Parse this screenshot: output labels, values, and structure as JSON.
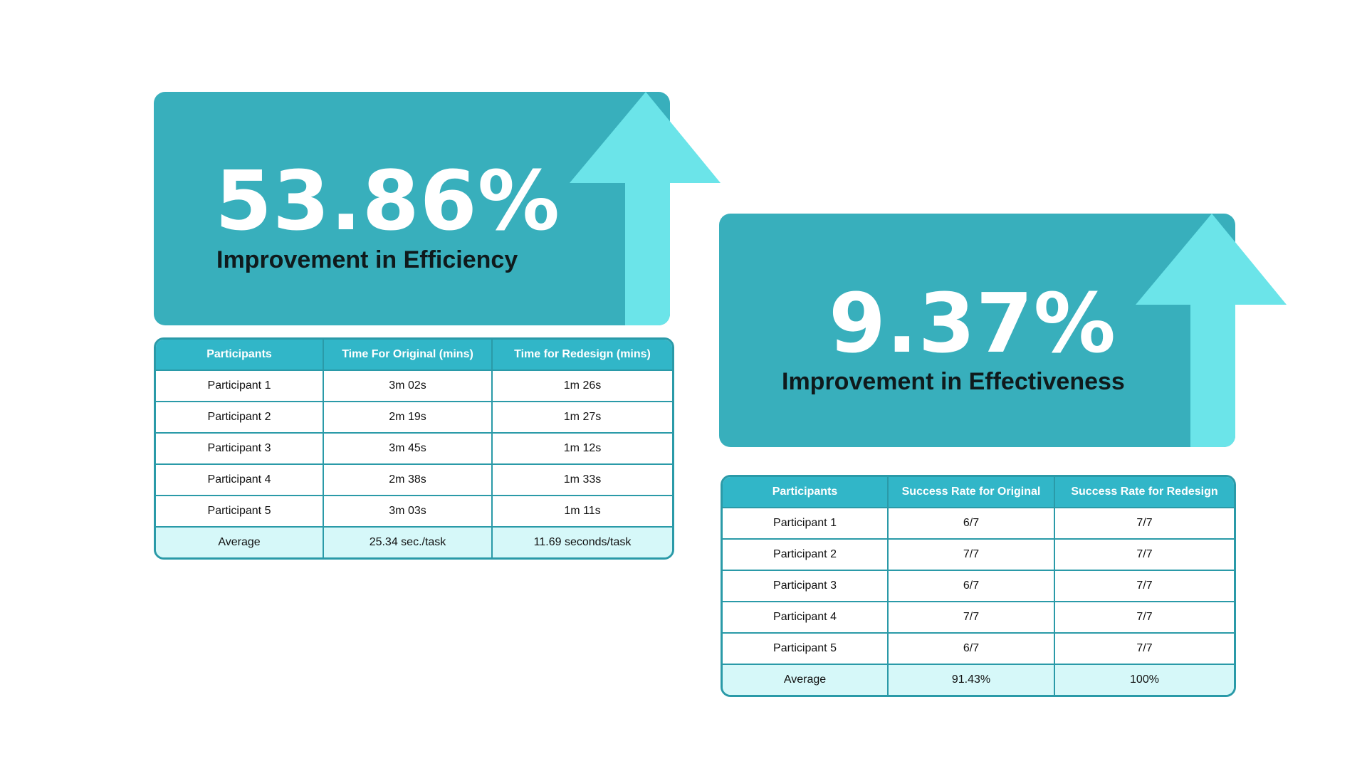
{
  "colors": {
    "card": "#38afbc",
    "arrow": "#6be4e9",
    "table_header": "#31b6c8",
    "table_border": "#2a9aa8",
    "average_row": "#d6f8f9"
  },
  "efficiency": {
    "value": "53.86%",
    "label": "Improvement in Efficiency",
    "icon": "up-arrow-icon",
    "table": {
      "headers": [
        "Participants",
        "Time For Original (mins)",
        "Time for Redesign (mins)"
      ],
      "rows": [
        [
          "Participant 1",
          "3m 02s",
          "1m 26s"
        ],
        [
          "Participant 2",
          "2m 19s",
          "1m 27s"
        ],
        [
          "Participant 3",
          "3m 45s",
          "1m 12s"
        ],
        [
          "Participant 4",
          "2m 38s",
          "1m 33s"
        ],
        [
          "Participant 5",
          "3m 03s",
          "1m 11s"
        ],
        [
          "Average",
          "25.34 sec./task",
          "11.69 seconds/task"
        ]
      ]
    }
  },
  "effectiveness": {
    "value": "9.37%",
    "label": "Improvement in Effectiveness",
    "icon": "up-arrow-icon",
    "table": {
      "headers": [
        "Participants",
        "Success Rate for Original",
        "Success Rate for Redesign"
      ],
      "rows": [
        [
          "Participant 1",
          "6/7",
          "7/7"
        ],
        [
          "Participant 2",
          "7/7",
          "7/7"
        ],
        [
          "Participant 3",
          "6/7",
          "7/7"
        ],
        [
          "Participant 4",
          "7/7",
          "7/7"
        ],
        [
          "Participant 5",
          "6/7",
          "7/7"
        ],
        [
          "Average",
          "91.43%",
          "100%"
        ]
      ]
    }
  }
}
